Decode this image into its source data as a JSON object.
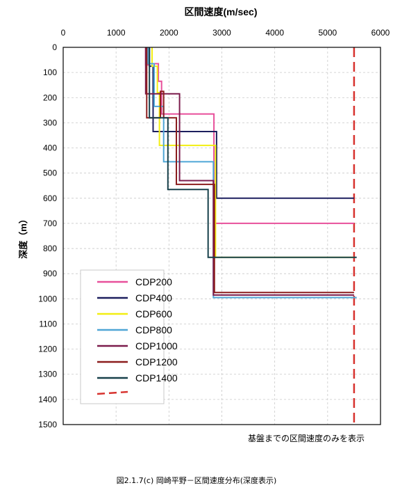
{
  "caption": "図2.1.7(c) 岡崎平野－区間速度分布(深度表示)",
  "note": "基盤までの区間速度のみを表示",
  "chart_data": {
    "type": "line",
    "title": "",
    "xlabel": "区間速度(m/sec)",
    "ylabel": "深度（m）",
    "xlim": [
      0,
      6000
    ],
    "ylim": [
      1500,
      0
    ],
    "x_ticks": [
      0,
      1000,
      2000,
      3000,
      4000,
      5000,
      6000
    ],
    "y_ticks": [
      0,
      100,
      200,
      300,
      400,
      500,
      600,
      700,
      800,
      900,
      1000,
      1100,
      1200,
      1300,
      1400,
      1500
    ],
    "grid": true,
    "legend_position": "lower-left",
    "series": [
      {
        "name": "CDP200",
        "color": "#e8509b",
        "points": [
          [
            1560,
            0
          ],
          [
            1560,
            70
          ],
          [
            1620,
            70
          ],
          [
            1620,
            65
          ],
          [
            1800,
            65
          ],
          [
            1800,
            135
          ],
          [
            1860,
            135
          ],
          [
            1860,
            265
          ],
          [
            2850,
            265
          ],
          [
            2850,
            700
          ],
          [
            5500,
            700
          ]
        ]
      },
      {
        "name": "CDP400",
        "color": "#1c1f5e",
        "points": [
          [
            1630,
            0
          ],
          [
            1630,
            75
          ],
          [
            1700,
            75
          ],
          [
            1700,
            335
          ],
          [
            2900,
            335
          ],
          [
            2900,
            600
          ],
          [
            5500,
            600
          ]
        ]
      },
      {
        "name": "CDP600",
        "color": "#f2ee12",
        "points": [
          [
            1680,
            0
          ],
          [
            1680,
            75
          ],
          [
            1780,
            75
          ],
          [
            1780,
            180
          ],
          [
            1820,
            180
          ],
          [
            1820,
            390
          ],
          [
            2880,
            390
          ],
          [
            2880,
            835
          ],
          [
            5500,
            835
          ]
        ]
      },
      {
        "name": "CDP800",
        "color": "#4fa6d6",
        "points": [
          [
            1600,
            0
          ],
          [
            1600,
            65
          ],
          [
            1720,
            65
          ],
          [
            1720,
            235
          ],
          [
            1900,
            235
          ],
          [
            1900,
            455
          ],
          [
            2840,
            455
          ],
          [
            2840,
            995
          ],
          [
            5550,
            995
          ]
        ]
      },
      {
        "name": "CDP1000",
        "color": "#7b1c4c",
        "points": [
          [
            1560,
            0
          ],
          [
            1560,
            185
          ],
          [
            2200,
            185
          ],
          [
            2200,
            530
          ],
          [
            2840,
            530
          ],
          [
            2840,
            985
          ],
          [
            5500,
            985
          ]
        ]
      },
      {
        "name": "CDP1200",
        "color": "#8b1d1d",
        "points": [
          [
            1580,
            0
          ],
          [
            1580,
            280
          ],
          [
            1840,
            280
          ],
          [
            1840,
            175
          ],
          [
            1900,
            175
          ],
          [
            1900,
            280
          ],
          [
            2140,
            280
          ],
          [
            2140,
            545
          ],
          [
            2860,
            545
          ],
          [
            2860,
            975
          ],
          [
            5500,
            975
          ]
        ]
      },
      {
        "name": "CDP1400",
        "color": "#17404a",
        "points": [
          [
            1630,
            0
          ],
          [
            1630,
            280
          ],
          [
            1980,
            280
          ],
          [
            1980,
            565
          ],
          [
            2740,
            565
          ],
          [
            2740,
            835
          ],
          [
            5550,
            835
          ]
        ]
      }
    ],
    "reference_lines": [
      {
        "x": 5500,
        "color": "#d7322e",
        "style": "dashed"
      }
    ]
  }
}
